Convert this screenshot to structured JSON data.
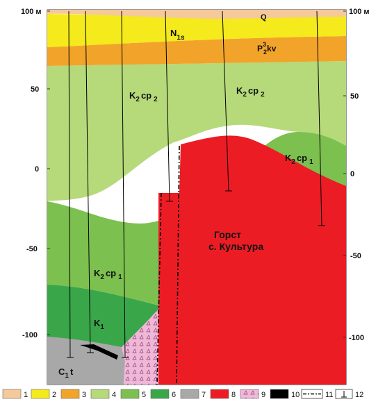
{
  "scale_left": {
    "ticks": [
      {
        "value": 100,
        "label": "100 м"
      },
      {
        "value": 50,
        "label": "50"
      },
      {
        "value": 0,
        "label": "0"
      },
      {
        "value": -50,
        "label": "-50"
      },
      {
        "value": -100,
        "label": "-100"
      }
    ]
  },
  "scale_right": {
    "ticks": [
      {
        "value": 100,
        "label": "100 м"
      },
      {
        "value": 50,
        "label": "50"
      },
      {
        "value": 0,
        "label": "0"
      },
      {
        "value": -50,
        "label": "-50"
      },
      {
        "value": -100,
        "label": "-100"
      }
    ]
  },
  "labels": {
    "q": "Q",
    "n1s": "N",
    "n1s_sub": "1s",
    "p2kv_p": "P",
    "p2kv_sub": "2",
    "p2kv_sup": "3",
    "p2kv_kv": "kv",
    "k2cp2_left": "K",
    "k2cp2_left_sub": "2",
    "k2cp2_left_rest": "cp",
    "k2cp2_left_sub2": "2",
    "k2cp2_right": "K",
    "k2cp2_right_sub": "2",
    "k2cp2_right_rest": "cp",
    "k2cp2_right_sub2": "2",
    "k2cp1_right": "K",
    "k2cp1_right_sub": "2",
    "k2cp1_right_rest": "cp",
    "k2cp1_right_sub2": "1",
    "k2cp1_left": "K",
    "k2cp1_left_sub": "2",
    "k2cp1_left_rest": "cp",
    "k2cp1_left_sub2": "1",
    "k1": "K",
    "k1_sub": "1",
    "c1t": "C",
    "c1t_sub": "1",
    "c1t_rest": "t",
    "horst_line1": "Горст",
    "horst_line2": "с. Культура"
  },
  "legend": [
    {
      "number": "1",
      "color": "#f6c99a"
    },
    {
      "number": "2",
      "color": "#f4ea1c"
    },
    {
      "number": "3",
      "color": "#f2a42a"
    },
    {
      "number": "4",
      "color": "#b6d97a"
    },
    {
      "number": "5",
      "color": "#7cc04f"
    },
    {
      "number": "6",
      "color": "#3aa64a"
    },
    {
      "number": "7",
      "color": "#a8a8a8"
    },
    {
      "number": "8",
      "color": "#ec1c24"
    },
    {
      "number": "9",
      "color": "#f0b8d8"
    },
    {
      "number": "10",
      "color": "#000000"
    },
    {
      "number": "11",
      "color": "#ffffff"
    },
    {
      "number": "12",
      "color": "#ffffff"
    }
  ],
  "colors": {
    "quaternary": "#f6c99a",
    "neogene": "#f4ea1c",
    "paleogene": "#f2a42a",
    "cp2": "#b6d97a",
    "cp1": "#7cc04f",
    "k1": "#3aa64a",
    "carbon": "#a8a8a8",
    "horst": "#ec1c24",
    "weathering": "#f0b8d8",
    "black_lens": "#000000"
  }
}
